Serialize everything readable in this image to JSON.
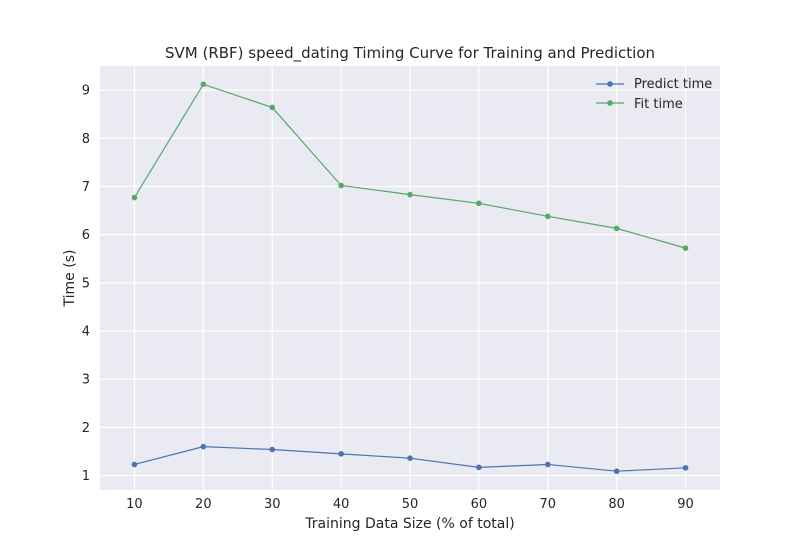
{
  "chart_data": {
    "type": "line",
    "title": "SVM (RBF) speed_dating Timing Curve for Training and Prediction",
    "xlabel": "Training Data Size (% of total)",
    "ylabel": "Time (s)",
    "x": [
      10,
      20,
      30,
      40,
      50,
      60,
      70,
      80,
      90
    ],
    "xlim": [
      5,
      95
    ],
    "ylim": [
      0.7,
      9.5
    ],
    "xticks": [
      10,
      20,
      30,
      40,
      50,
      60,
      70,
      80,
      90
    ],
    "yticks": [
      1,
      2,
      3,
      4,
      5,
      6,
      7,
      8,
      9
    ],
    "grid": true,
    "legend_position": "top-right",
    "series": [
      {
        "name": "Predict time",
        "color": "#4c72b0",
        "marker": "circle",
        "values": [
          1.23,
          1.6,
          1.54,
          1.45,
          1.36,
          1.17,
          1.23,
          1.09,
          1.16
        ]
      },
      {
        "name": "Fit time",
        "color": "#55a868",
        "marker": "circle",
        "values": [
          6.77,
          9.12,
          8.64,
          7.02,
          6.83,
          6.65,
          6.38,
          6.13,
          5.72
        ]
      }
    ]
  }
}
